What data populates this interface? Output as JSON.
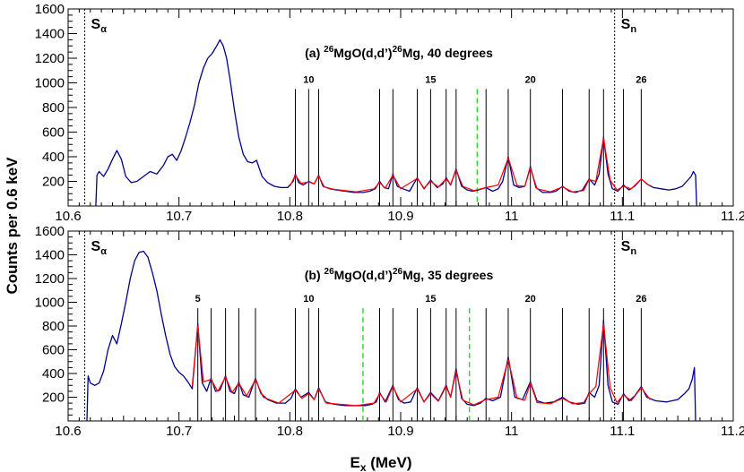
{
  "chart_data": [
    {
      "type": "line",
      "title": "(a) ²⁶MgO(d,d’)²⁶Mg, 40 degrees",
      "title_parts": {
        "prefix": "(a) ",
        "sup1": "26",
        "mid": "MgO(d,d’)",
        "sup2": "26",
        "suffix": "Mg, 40 degrees"
      },
      "xlabel": "",
      "ylabel": "",
      "xlim": [
        10.6,
        11.2
      ],
      "ylim": [
        0,
        1600
      ],
      "x_ticks": [
        "10.6",
        "10.7",
        "10.8",
        "10.9",
        "11",
        "11.1",
        "11.2"
      ],
      "y_ticks": [
        "200",
        "400",
        "600",
        "800",
        "1000",
        "1200",
        "1400",
        "1600"
      ],
      "thresholds": [
        {
          "label": "S",
          "sub": "α",
          "x": 10.615
        },
        {
          "label": "S",
          "sub": "n",
          "x": 11.093
        }
      ],
      "peak_lines": [
        10.805,
        10.817,
        10.826,
        10.881,
        10.893,
        10.915,
        10.927,
        10.941,
        10.95,
        10.977,
        10.997,
        11.017,
        11.046,
        11.07,
        11.083,
        11.101,
        11.117
      ],
      "dashed_lines": [
        10.969
      ],
      "peak_labels": [
        {
          "text": "10",
          "x": 10.817
        },
        {
          "text": "15",
          "x": 10.927
        },
        {
          "text": "20",
          "x": 11.017
        },
        {
          "text": "26",
          "x": 11.117
        }
      ],
      "series": [
        {
          "color": "#00008b",
          "x": [
            10.625,
            10.626,
            10.628,
            10.632,
            10.636,
            10.64,
            10.644,
            10.648,
            10.652,
            10.657,
            10.662,
            10.668,
            10.674,
            10.68,
            10.686,
            10.69,
            10.694,
            10.698,
            10.702,
            10.706,
            10.71,
            10.714,
            10.718,
            10.722,
            10.726,
            10.73,
            10.734,
            10.737,
            10.74,
            10.743,
            10.746,
            10.75,
            10.754,
            10.758,
            10.762,
            10.766,
            10.77,
            10.775,
            10.78,
            10.786,
            10.792,
            10.798,
            10.803,
            10.805,
            10.808,
            10.812,
            10.817,
            10.822,
            10.826,
            10.83,
            10.836,
            10.842,
            10.85,
            10.858,
            10.866,
            10.872,
            10.877,
            10.881,
            10.885,
            10.889,
            10.893,
            10.897,
            10.902,
            10.908,
            10.915,
            10.921,
            10.927,
            10.933,
            10.938,
            10.941,
            10.945,
            10.95,
            10.955,
            10.96,
            10.965,
            10.97,
            10.977,
            10.983,
            10.988,
            10.992,
            10.997,
            11.002,
            11.007,
            11.012,
            11.017,
            11.022,
            11.028,
            11.035,
            11.04,
            11.046,
            11.052,
            11.058,
            11.064,
            11.07,
            11.075,
            11.079,
            11.083,
            11.087,
            11.091,
            11.096,
            11.101,
            11.106,
            11.111,
            11.117,
            11.122,
            11.128,
            11.135,
            11.142,
            11.148,
            11.154,
            11.158,
            11.162,
            11.164,
            11.166,
            11.167
          ],
          "y": [
            0,
            250,
            280,
            240,
            300,
            380,
            450,
            380,
            240,
            190,
            200,
            240,
            280,
            260,
            330,
            400,
            420,
            370,
            450,
            560,
            680,
            820,
            1000,
            1120,
            1200,
            1240,
            1300,
            1350,
            1300,
            1200,
            1030,
            780,
            560,
            420,
            360,
            350,
            370,
            240,
            190,
            160,
            150,
            150,
            200,
            260,
            190,
            170,
            200,
            180,
            250,
            160,
            140,
            130,
            120,
            110,
            110,
            120,
            140,
            200,
            150,
            140,
            260,
            160,
            140,
            120,
            230,
            140,
            210,
            150,
            180,
            230,
            170,
            300,
            160,
            130,
            120,
            130,
            150,
            120,
            140,
            200,
            400,
            170,
            150,
            160,
            320,
            150,
            110,
            110,
            120,
            160,
            120,
            110,
            130,
            220,
            170,
            260,
            560,
            260,
            140,
            120,
            170,
            130,
            160,
            220,
            180,
            150,
            140,
            130,
            140,
            160,
            200,
            240,
            280,
            250,
            0
          ]
        },
        {
          "color": "#ff0000",
          "x": [
            10.8,
            10.805,
            10.81,
            10.817,
            10.822,
            10.826,
            10.831,
            10.84,
            10.86,
            10.876,
            10.881,
            10.886,
            10.893,
            10.9,
            10.915,
            10.921,
            10.927,
            10.934,
            10.941,
            10.945,
            10.95,
            10.956,
            10.966,
            10.977,
            10.988,
            10.997,
            11.005,
            11.012,
            11.017,
            11.023,
            11.035,
            11.046,
            11.055,
            11.065,
            11.07,
            11.076,
            11.083,
            11.089,
            11.095,
            11.101,
            11.108,
            11.117,
            11.125
          ],
          "y": [
            160,
            250,
            185,
            195,
            180,
            245,
            155,
            135,
            115,
            140,
            190,
            145,
            250,
            140,
            225,
            145,
            200,
            155,
            220,
            175,
            290,
            160,
            125,
            150,
            170,
            390,
            165,
            160,
            310,
            140,
            115,
            155,
            115,
            125,
            215,
            200,
            550,
            210,
            130,
            160,
            140,
            220,
            160
          ]
        }
      ]
    },
    {
      "type": "line",
      "title": "(b) ²⁶MgO(d,d’)²⁶Mg, 35 degrees",
      "title_parts": {
        "prefix": "(b) ",
        "sup1": "26",
        "mid": "MgO(d,d’)",
        "sup2": "26",
        "suffix": "Mg, 35 degrees"
      },
      "xlabel": "E_x (MeV)",
      "xlabel_parts": {
        "main": "E",
        "sub": "x",
        "suffix": " (MeV)"
      },
      "ylabel": "Counts per 0.6 keV",
      "xlim": [
        10.6,
        11.2
      ],
      "ylim": [
        0,
        1600
      ],
      "x_ticks": [
        "10.6",
        "10.7",
        "10.8",
        "10.9",
        "11",
        "11.1",
        "11.2"
      ],
      "y_ticks": [
        "200",
        "400",
        "600",
        "800",
        "1000",
        "1200",
        "1400",
        "1600"
      ],
      "thresholds": [
        {
          "label": "S",
          "sub": "α",
          "x": 10.615
        },
        {
          "label": "S",
          "sub": "n",
          "x": 11.093
        }
      ],
      "peak_lines": [
        10.717,
        10.729,
        10.742,
        10.754,
        10.769,
        10.805,
        10.817,
        10.826,
        10.881,
        10.893,
        10.915,
        10.927,
        10.941,
        10.95,
        10.977,
        10.997,
        11.017,
        11.046,
        11.07,
        11.083,
        11.101,
        11.117
      ],
      "dashed_lines": [
        10.866,
        10.962
      ],
      "peak_labels": [
        {
          "text": "5",
          "x": 10.717
        },
        {
          "text": "10",
          "x": 10.817
        },
        {
          "text": "15",
          "x": 10.927
        },
        {
          "text": "20",
          "x": 11.017
        },
        {
          "text": "26",
          "x": 11.117
        }
      ],
      "series": [
        {
          "color": "#00008b",
          "x": [
            10.617,
            10.618,
            10.62,
            10.624,
            10.628,
            10.632,
            10.636,
            10.64,
            10.644,
            10.648,
            10.652,
            10.656,
            10.66,
            10.664,
            10.668,
            10.672,
            10.676,
            10.68,
            10.684,
            10.688,
            10.692,
            10.696,
            10.7,
            10.704,
            10.708,
            10.712,
            10.717,
            10.721,
            10.725,
            10.729,
            10.733,
            10.737,
            10.742,
            10.746,
            10.75,
            10.754,
            10.758,
            10.763,
            10.769,
            10.774,
            10.78,
            10.788,
            10.796,
            10.801,
            10.805,
            10.81,
            10.817,
            10.822,
            10.826,
            10.832,
            10.84,
            10.85,
            10.86,
            10.868,
            10.874,
            10.878,
            10.881,
            10.886,
            10.893,
            10.898,
            10.903,
            10.909,
            10.915,
            10.921,
            10.927,
            10.934,
            10.941,
            10.945,
            10.95,
            10.955,
            10.96,
            10.966,
            10.972,
            10.977,
            10.983,
            10.99,
            10.997,
            11.003,
            11.01,
            11.017,
            11.023,
            11.03,
            11.038,
            11.046,
            11.052,
            11.06,
            11.066,
            11.07,
            11.075,
            11.079,
            11.083,
            11.087,
            11.091,
            11.096,
            11.101,
            11.106,
            11.111,
            11.117,
            11.122,
            11.13,
            11.14,
            11.15,
            11.156,
            11.16,
            11.163,
            11.165,
            11.166
          ],
          "y": [
            0,
            380,
            320,
            300,
            320,
            420,
            600,
            720,
            650,
            820,
            1000,
            1200,
            1350,
            1420,
            1430,
            1380,
            1250,
            1100,
            900,
            720,
            560,
            460,
            410,
            380,
            330,
            270,
            820,
            320,
            250,
            360,
            250,
            260,
            380,
            250,
            230,
            330,
            220,
            200,
            360,
            230,
            180,
            150,
            150,
            190,
            270,
            200,
            240,
            180,
            280,
            160,
            140,
            130,
            130,
            130,
            140,
            160,
            240,
            160,
            300,
            180,
            150,
            160,
            280,
            160,
            240,
            170,
            300,
            200,
            440,
            190,
            140,
            130,
            150,
            190,
            170,
            200,
            540,
            200,
            180,
            330,
            170,
            150,
            160,
            200,
            160,
            140,
            150,
            240,
            200,
            300,
            850,
            300,
            160,
            140,
            230,
            170,
            210,
            290,
            200,
            170,
            160,
            180,
            230,
            270,
            350,
            450,
            0
          ]
        },
        {
          "color": "#ff0000",
          "x": [
            10.712,
            10.717,
            10.722,
            10.729,
            10.735,
            10.742,
            10.748,
            10.754,
            10.761,
            10.769,
            10.776,
            10.79,
            10.805,
            10.811,
            10.817,
            10.822,
            10.826,
            10.833,
            10.86,
            10.876,
            10.881,
            10.887,
            10.893,
            10.9,
            10.915,
            10.921,
            10.927,
            10.934,
            10.941,
            10.945,
            10.95,
            10.956,
            10.966,
            10.977,
            10.988,
            10.997,
            11.005,
            11.012,
            11.017,
            11.023,
            11.035,
            11.046,
            11.055,
            11.065,
            11.07,
            11.076,
            11.083,
            11.089,
            11.095,
            11.101,
            11.108,
            11.117,
            11.125
          ],
          "y": [
            300,
            800,
            330,
            350,
            250,
            370,
            240,
            320,
            210,
            350,
            200,
            150,
            260,
            190,
            230,
            180,
            270,
            150,
            130,
            150,
            230,
            160,
            290,
            160,
            270,
            160,
            230,
            165,
            290,
            200,
            420,
            175,
            135,
            180,
            200,
            520,
            190,
            175,
            320,
            155,
            145,
            190,
            145,
            155,
            230,
            290,
            820,
            280,
            155,
            220,
            170,
            280,
            180
          ]
        }
      ]
    }
  ]
}
